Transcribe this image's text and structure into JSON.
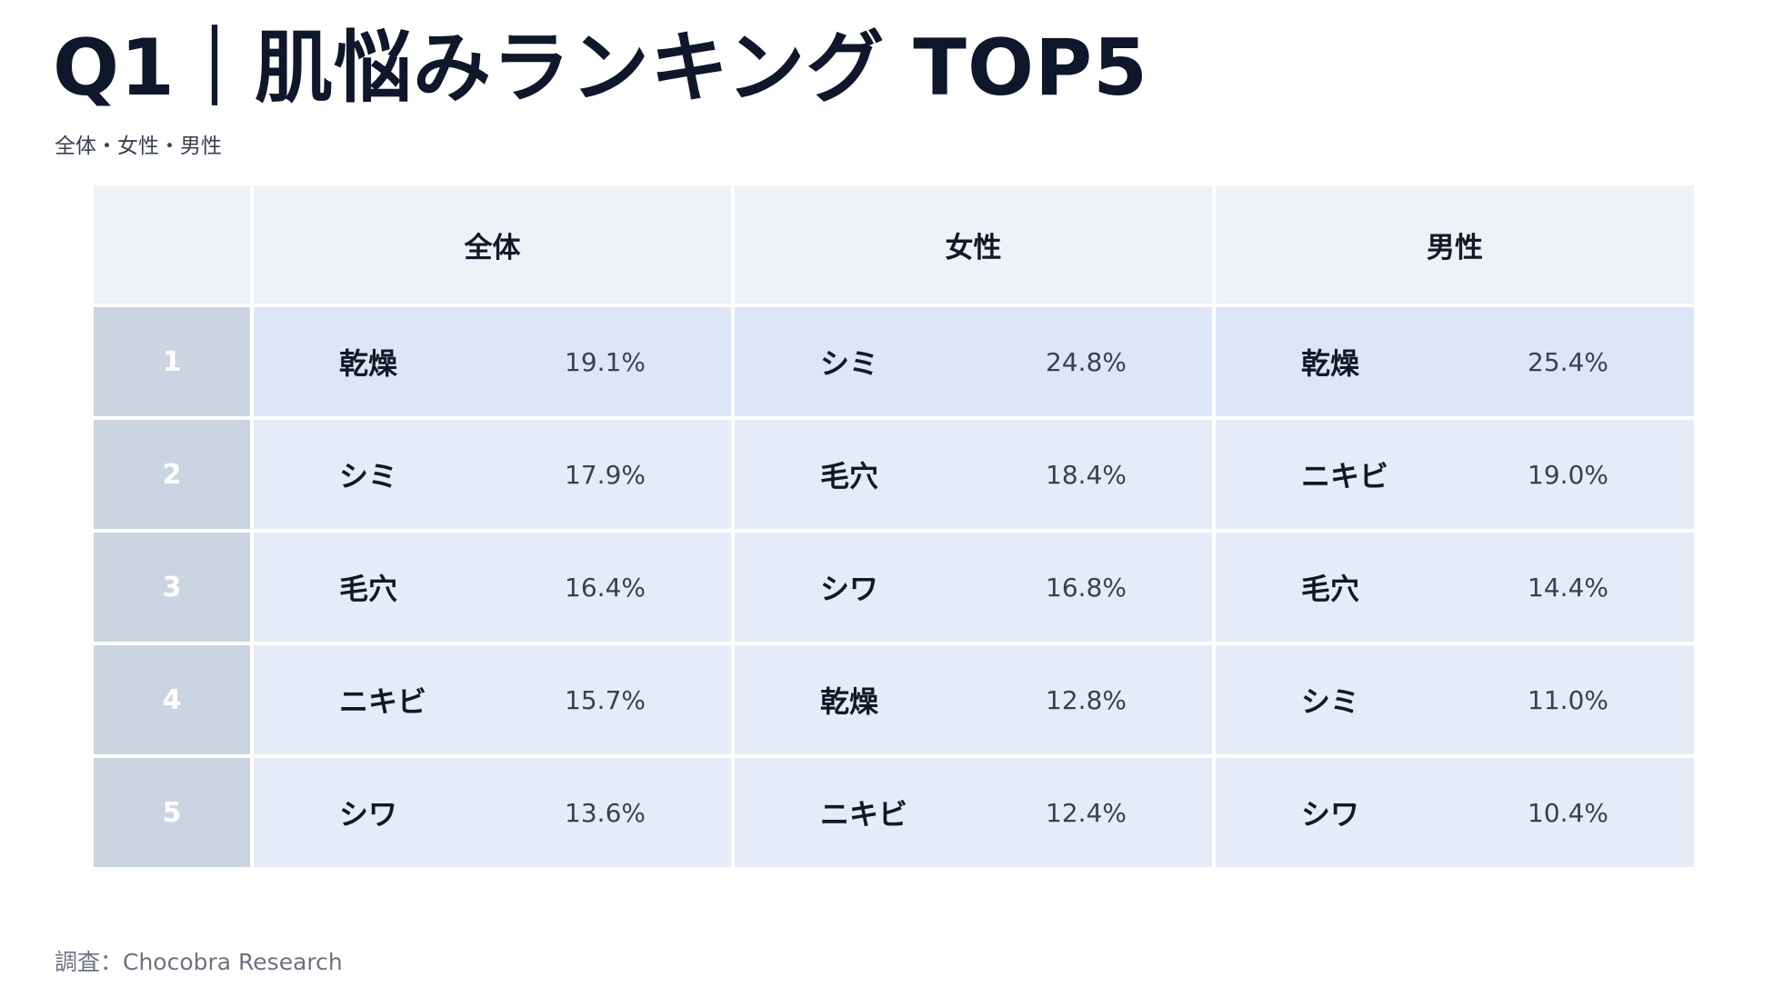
{
  "title": "Q1｜肌悩みランキング TOP5",
  "subtitle": "全体・女性・男性",
  "table": {
    "columns": [
      "全体",
      "女性",
      "男性"
    ],
    "rows": [
      {
        "rank": "1",
        "cells": [
          {
            "item": "乾燥",
            "pct": "19.1%"
          },
          {
            "item": "シミ",
            "pct": "24.8%"
          },
          {
            "item": "乾燥",
            "pct": "25.4%"
          }
        ]
      },
      {
        "rank": "2",
        "cells": [
          {
            "item": "シミ",
            "pct": "17.9%"
          },
          {
            "item": "毛穴",
            "pct": "18.4%"
          },
          {
            "item": "ニキビ",
            "pct": "19.0%"
          }
        ]
      },
      {
        "rank": "3",
        "cells": [
          {
            "item": "毛穴",
            "pct": "16.4%"
          },
          {
            "item": "シワ",
            "pct": "16.8%"
          },
          {
            "item": "毛穴",
            "pct": "14.4%"
          }
        ]
      },
      {
        "rank": "4",
        "cells": [
          {
            "item": "ニキビ",
            "pct": "15.7%"
          },
          {
            "item": "乾燥",
            "pct": "12.8%"
          },
          {
            "item": "シミ",
            "pct": "11.0%"
          }
        ]
      },
      {
        "rank": "5",
        "cells": [
          {
            "item": "シワ",
            "pct": "13.6%"
          },
          {
            "item": "ニキビ",
            "pct": "12.4%"
          },
          {
            "item": "シワ",
            "pct": "10.4%"
          }
        ]
      }
    ]
  },
  "source": "調査：Chocobra Research",
  "colors": {
    "header_bg": "#eef1f6",
    "rank_bg": "#cbd5e1",
    "cell_bg": "#e6ecf7",
    "first_row_bg": "#dde6f6",
    "title_color": "#0f172a"
  }
}
